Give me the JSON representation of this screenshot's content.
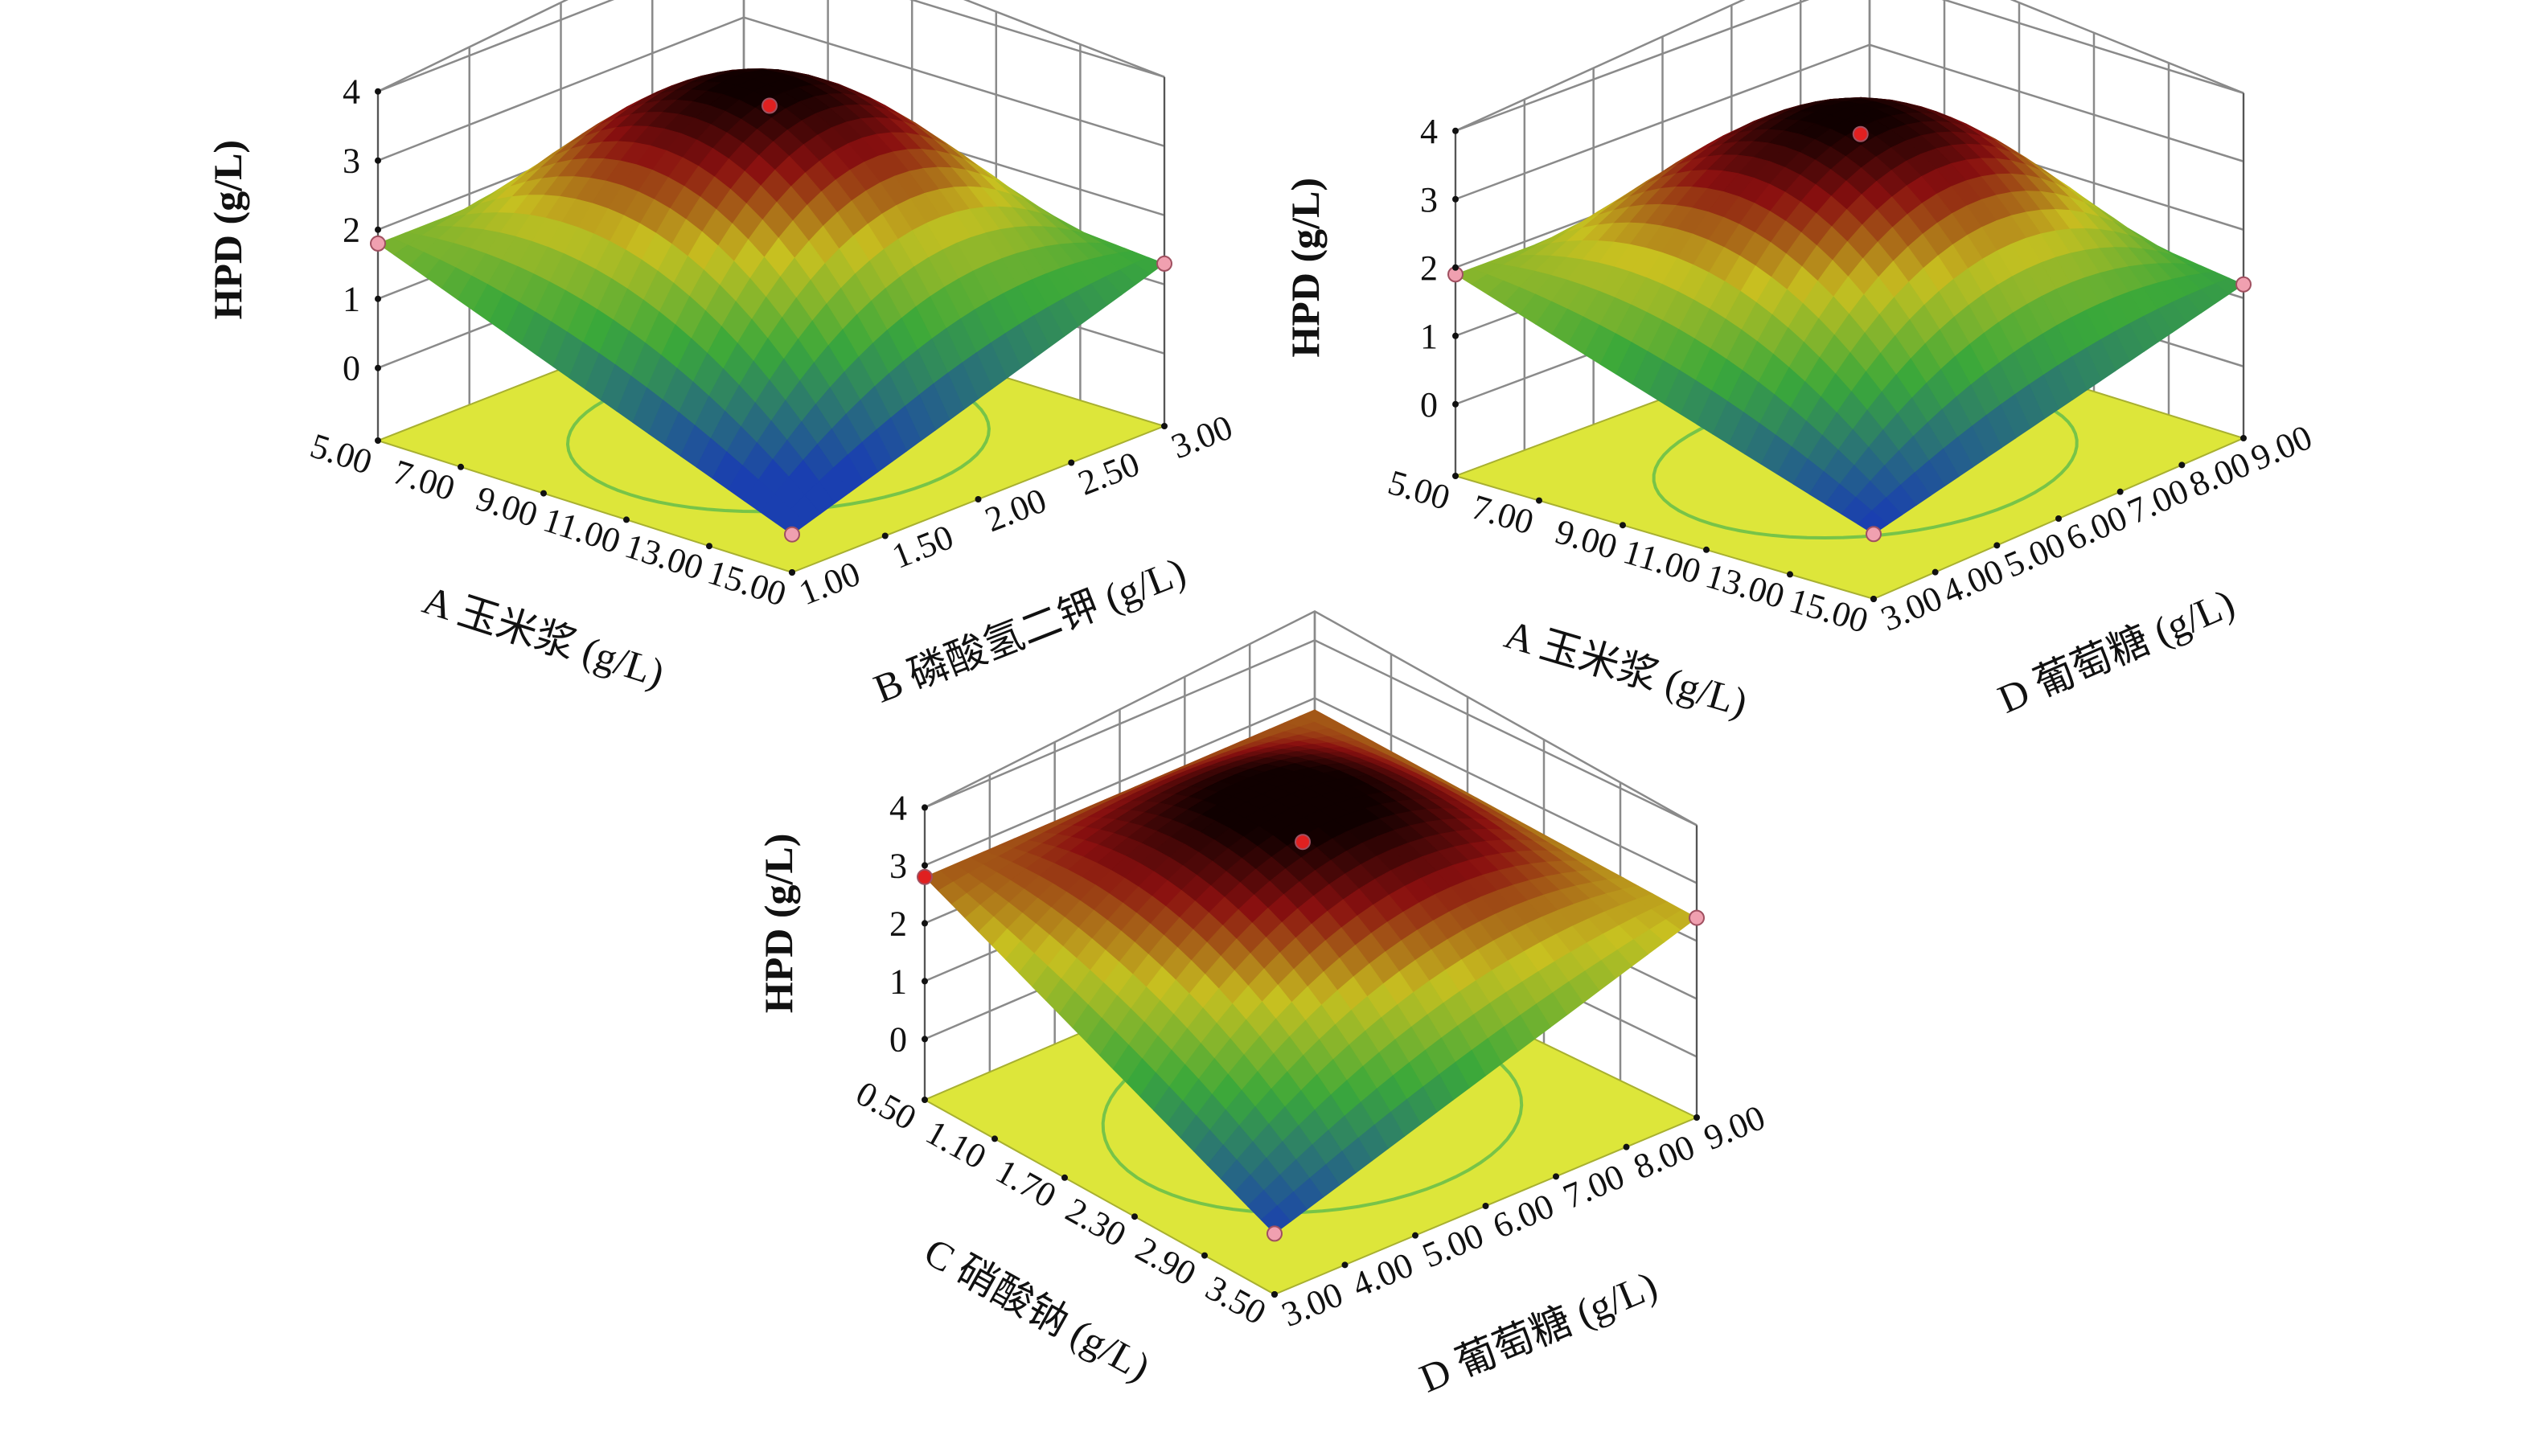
{
  "figure": {
    "colors": {
      "floor": "#dde63a",
      "contour": "#6cc04a",
      "grid": "#8a8a8a",
      "design_point": "#f0a0b0",
      "optimum_point": "#e02020",
      "surface_low": "#1a3fb0",
      "surface_mid": "#3aa83a",
      "surface_high": "#8a1010",
      "surface_top": "#100000"
    }
  },
  "chart_data": [
    {
      "type": "surface",
      "title": "",
      "zlabel": "HPD (g/L)",
      "zlim": [
        0,
        4
      ],
      "zticks": [
        "0",
        "1",
        "2",
        "3",
        "4"
      ],
      "xlabel": "A 玉米浆 (g/L)",
      "xlim": [
        5.0,
        15.0
      ],
      "xticks": [
        "5.00",
        "7.00",
        "9.00",
        "11.00",
        "13.00",
        "15.00"
      ],
      "ylabel": "B 磷酸氢二钾 (g/L)",
      "ylim": [
        1.0,
        3.0
      ],
      "yticks": [
        "1.00",
        "1.50",
        "2.00",
        "2.50",
        "3.00"
      ],
      "surface_peak": 3.8,
      "corner_values": {
        "xmin_ymin": 1.8,
        "xmax_ymin": -0.5,
        "xmax_ymax": 1.3,
        "xmin_ymax": 1.8
      },
      "design_points": [
        {
          "x": 5.0,
          "y": 1.0,
          "z": 1.8,
          "kind": "design"
        },
        {
          "x": 15.0,
          "y": 1.0,
          "z": -0.5,
          "kind": "design"
        },
        {
          "x": 15.0,
          "y": 3.0,
          "z": 1.3,
          "kind": "design"
        },
        {
          "x": 10.0,
          "y": 2.0,
          "z": 3.7,
          "kind": "optimum"
        }
      ]
    },
    {
      "type": "surface",
      "title": "",
      "zlabel": "HPD (g/L)",
      "zlim": [
        0,
        4
      ],
      "zticks": [
        "0",
        "1",
        "2",
        "3",
        "4"
      ],
      "xlabel": "A 玉米浆 (g/L)",
      "xlim": [
        5.0,
        15.0
      ],
      "xticks": [
        "5.00",
        "7.00",
        "9.00",
        "11.00",
        "13.00",
        "15.00"
      ],
      "ylabel": "D 葡萄糖 (g/L)",
      "ylim": [
        3.0,
        9.0
      ],
      "yticks": [
        "3.00",
        "4.00",
        "5.00",
        "6.00",
        "7.00",
        "8.00",
        "9.00"
      ],
      "surface_peak": 3.8,
      "corner_values": {
        "xmin_ymin": 1.9,
        "xmax_ymin": -0.1,
        "xmax_ymax": 1.2,
        "xmin_ymax": 1.9
      },
      "design_points": [
        {
          "x": 5.0,
          "y": 3.0,
          "z": 1.9,
          "kind": "design"
        },
        {
          "x": 15.0,
          "y": 3.0,
          "z": -0.1,
          "kind": "design"
        },
        {
          "x": 15.0,
          "y": 9.0,
          "z": 1.2,
          "kind": "design"
        },
        {
          "x": 10.0,
          "y": 6.0,
          "z": 3.7,
          "kind": "optimum"
        }
      ]
    },
    {
      "type": "surface",
      "title": "",
      "zlabel": "HPD (g/L)",
      "zlim": [
        0,
        4
      ],
      "zticks": [
        "0",
        "1",
        "2",
        "3",
        "4"
      ],
      "xlabel": "C 硝酸钠 (g/L)",
      "xlim": [
        0.5,
        3.5
      ],
      "xticks": [
        "0.50",
        "1.10",
        "1.70",
        "2.30",
        "2.90",
        "3.50"
      ],
      "ylabel": "D 葡萄糖 (g/L)",
      "ylim": [
        3.0,
        9.0
      ],
      "yticks": [
        "3.00",
        "4.00",
        "5.00",
        "6.00",
        "7.00",
        "8.00",
        "9.00"
      ],
      "surface_peak": 3.7,
      "corner_values": {
        "xmin_ymin": 2.8,
        "xmax_ymin": 0.0,
        "xmax_ymax": 2.4,
        "xmin_ymax": 2.8
      },
      "design_points": [
        {
          "x": 0.5,
          "y": 3.0,
          "z": 2.8,
          "kind": "optimum"
        },
        {
          "x": 3.5,
          "y": 3.0,
          "z": 0.0,
          "kind": "design"
        },
        {
          "x": 3.5,
          "y": 9.0,
          "z": 2.4,
          "kind": "design"
        },
        {
          "x": 2.0,
          "y": 6.0,
          "z": 3.6,
          "kind": "optimum"
        }
      ]
    }
  ]
}
